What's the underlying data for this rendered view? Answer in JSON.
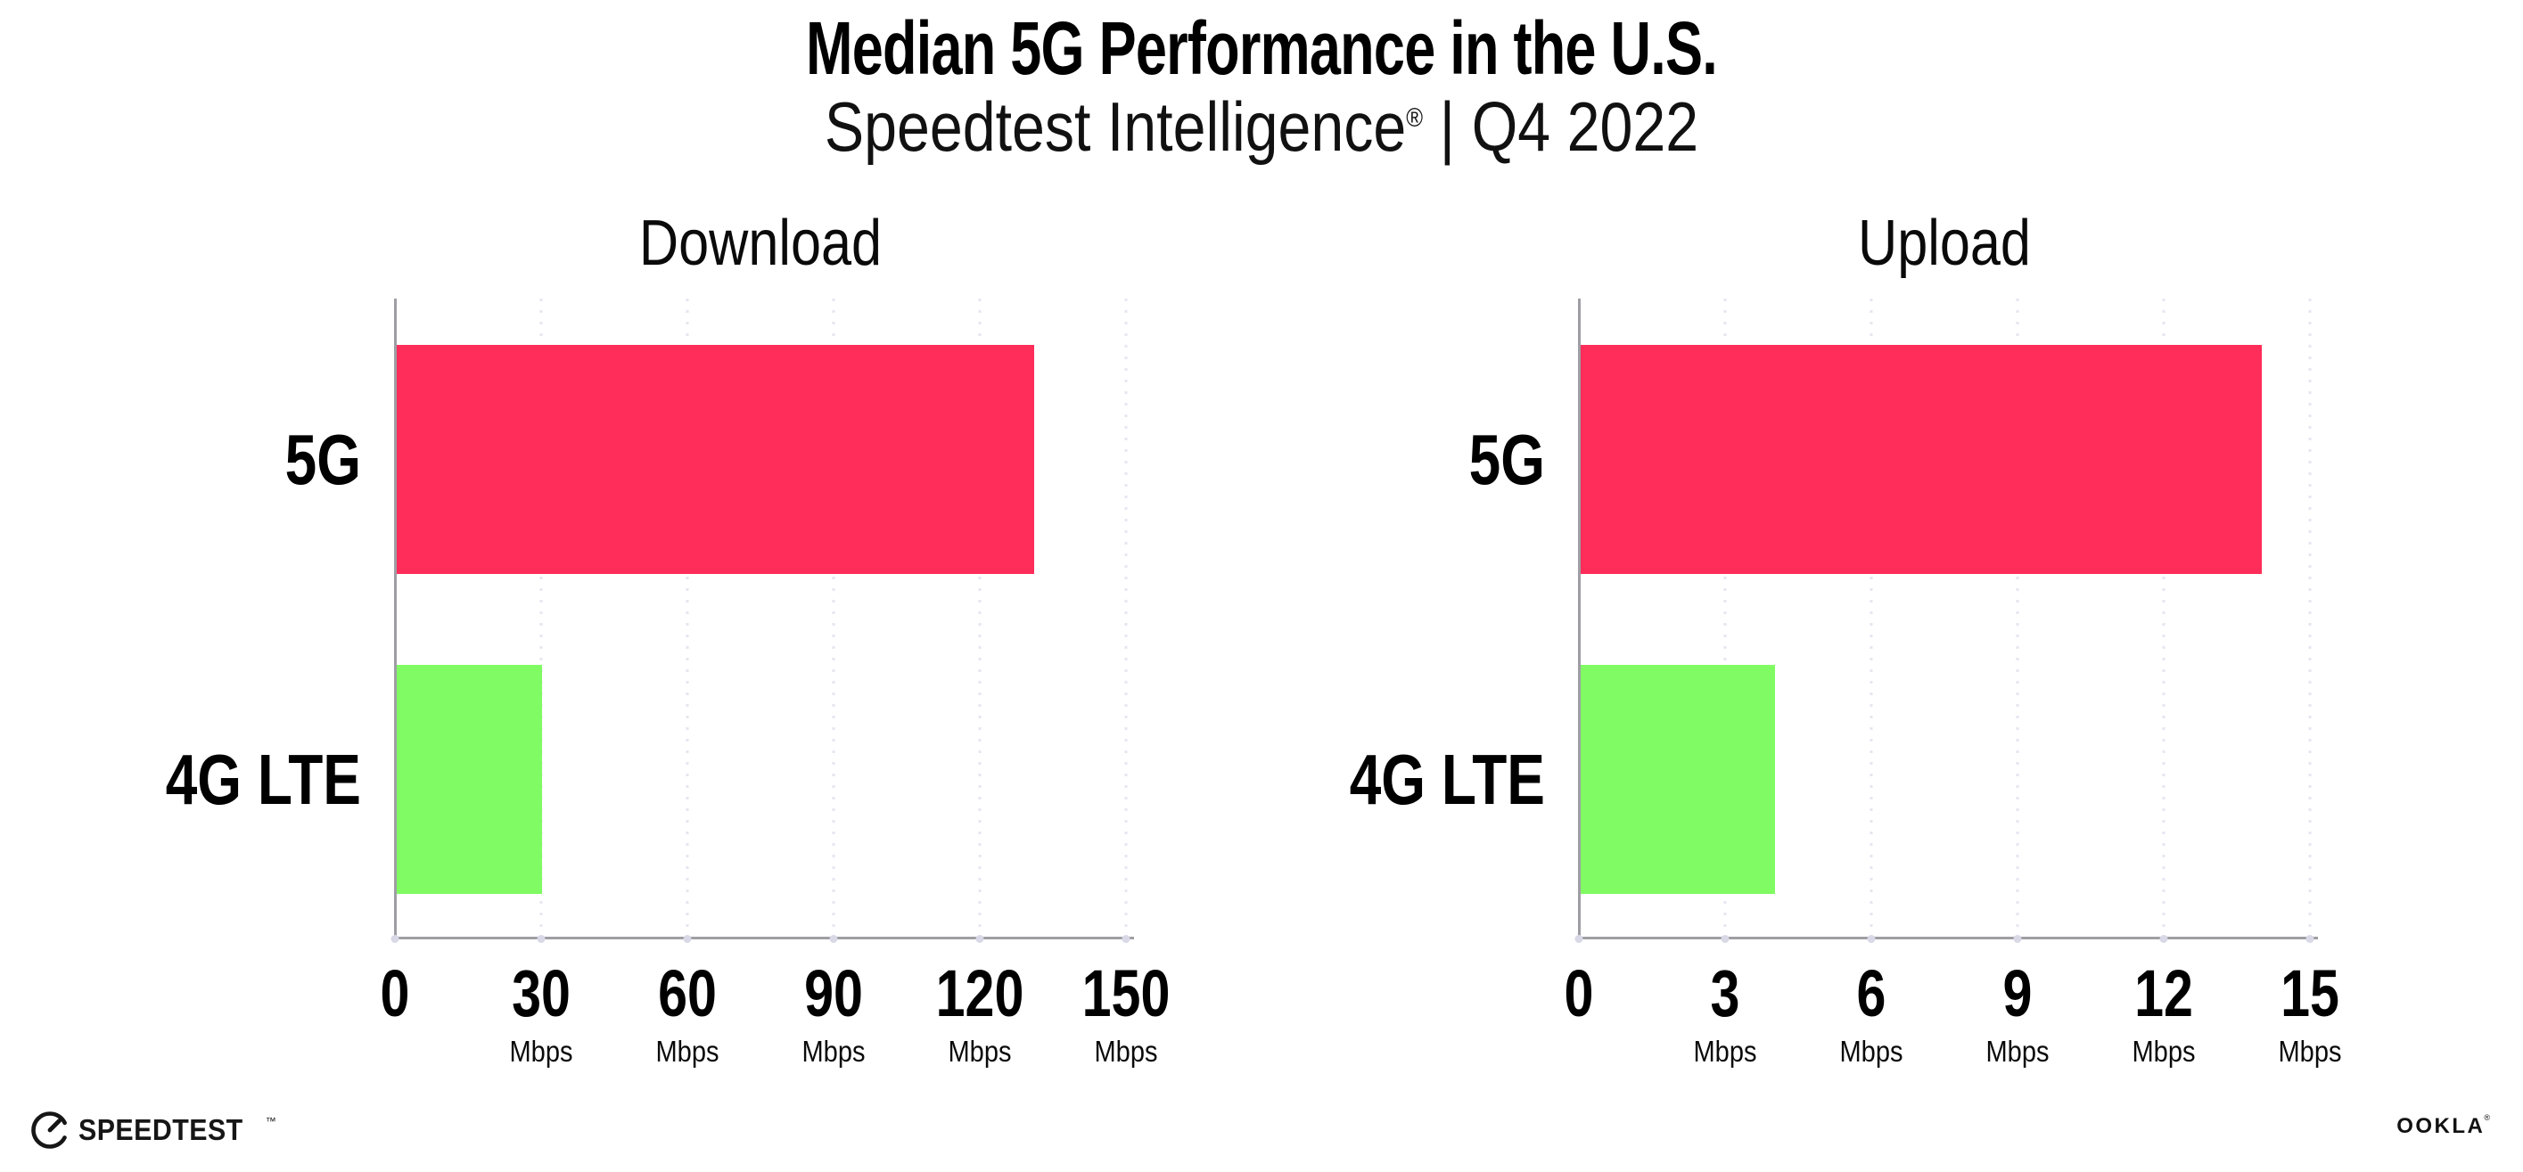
{
  "header": {
    "title": "Median 5G Performance in the U.S.",
    "subtitle": {
      "product": "Speedtest Intelligence",
      "reg": "®",
      "divider": "|",
      "period": "Q4 2022"
    }
  },
  "chart_data": [
    {
      "type": "bar",
      "orientation": "horizontal",
      "title": "Download",
      "categories": [
        "5G",
        "4G LTE"
      ],
      "values": [
        131,
        30
      ],
      "unit": "Mbps",
      "xlabel": "Mbps",
      "ylabel": "",
      "xlim": [
        0,
        150
      ],
      "xticks": [
        0,
        30,
        60,
        90,
        120,
        150
      ],
      "bar_colors": [
        "#FF2D59",
        "#80FB63"
      ],
      "grid": "vertical-dotted",
      "legend": "none"
    },
    {
      "type": "bar",
      "orientation": "horizontal",
      "title": "Upload",
      "categories": [
        "5G",
        "4G LTE"
      ],
      "values": [
        14,
        4
      ],
      "unit": "Mbps",
      "xlabel": "Mbps",
      "ylabel": "",
      "xlim": [
        0,
        15
      ],
      "xticks": [
        0,
        3,
        6,
        9,
        12,
        15
      ],
      "bar_colors": [
        "#FF2D59",
        "#80FB63"
      ],
      "grid": "vertical-dotted",
      "legend": "none"
    }
  ],
  "footer": {
    "speedtest_label": "SPEEDTEST",
    "speedtest_mark": "™",
    "ookla_label": "OOKLA",
    "ookla_mark": "®"
  },
  "icons": {
    "speedtest": "speedometer-gauge-icon"
  },
  "colors": {
    "bar_5g": "#FF2D59",
    "bar_4g_lte": "#80FB63",
    "gridline": "#E6E6F1",
    "axis": "#9E9EA4",
    "tick_dot": "#D8D8E7",
    "text": "#000000",
    "background": "#FFFFFF"
  }
}
